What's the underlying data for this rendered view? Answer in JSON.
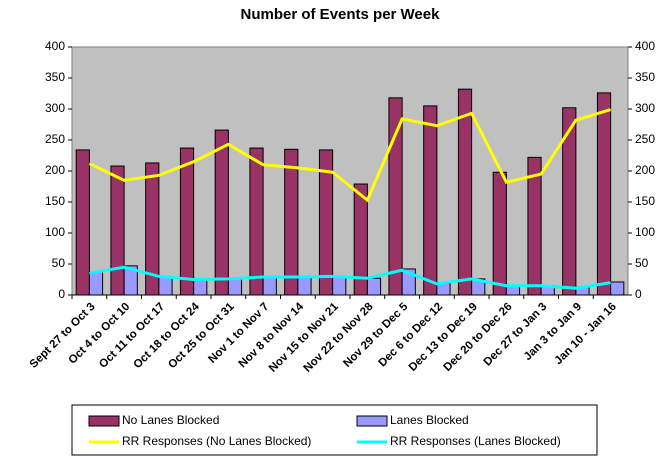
{
  "chart_data": {
    "type": "bar",
    "title": "Number of Events per Week",
    "categories": [
      "Sept 27 to Oct 3",
      "Oct 4 to Oct 10",
      "Oct 11 to Oct 17",
      "Oct 18 to Oct 24",
      "Oct 25 to Oct 31",
      "Nov 1 to Nov 7",
      "Nov 8 to Nov 14",
      "Nov 15 to Nov 21",
      "Nov 22 to Nov 28",
      "Nov 29 to Dec 5",
      "Dec 6 to Dec 12",
      "Dec 13 to Dec 19",
      "Dec 20 to Dec 26",
      "Dec 27 to Jan 3",
      "Jan 3 to Jan 9",
      "Jan 10 - Jan 16"
    ],
    "series": [
      {
        "name": "No Lanes Blocked",
        "type": "bar",
        "color": "#993366",
        "values": [
          234,
          208,
          213,
          237,
          266,
          237,
          235,
          234,
          179,
          318,
          305,
          332,
          198,
          222,
          302,
          326
        ]
      },
      {
        "name": "Lanes Blocked",
        "type": "bar",
        "color": "#9999ff",
        "values": [
          37,
          47,
          29,
          24,
          26,
          29,
          29,
          30,
          27,
          42,
          19,
          26,
          16,
          15,
          13,
          21
        ]
      },
      {
        "name": "RR Responses (No Lanes Blocked)",
        "type": "line",
        "color": "#ffff00",
        "values": [
          212,
          185,
          193,
          215,
          243,
          210,
          205,
          198,
          153,
          284,
          273,
          293,
          182,
          195,
          282,
          299
        ]
      },
      {
        "name": "RR Responses (Lanes Blocked)",
        "type": "line",
        "color": "#00ffff",
        "values": [
          35,
          45,
          30,
          25,
          26,
          29,
          29,
          30,
          27,
          40,
          18,
          26,
          15,
          15,
          11,
          20
        ]
      }
    ],
    "ylim": [
      0,
      400
    ],
    "yticks": [
      0,
      50,
      100,
      150,
      200,
      250,
      300,
      350,
      400
    ],
    "y2lim": [
      0,
      400
    ],
    "y2ticks": [
      0,
      50,
      100,
      150,
      200,
      250,
      300,
      350,
      400
    ],
    "plot_background": "#c0c0c0",
    "legend": "bottom"
  }
}
